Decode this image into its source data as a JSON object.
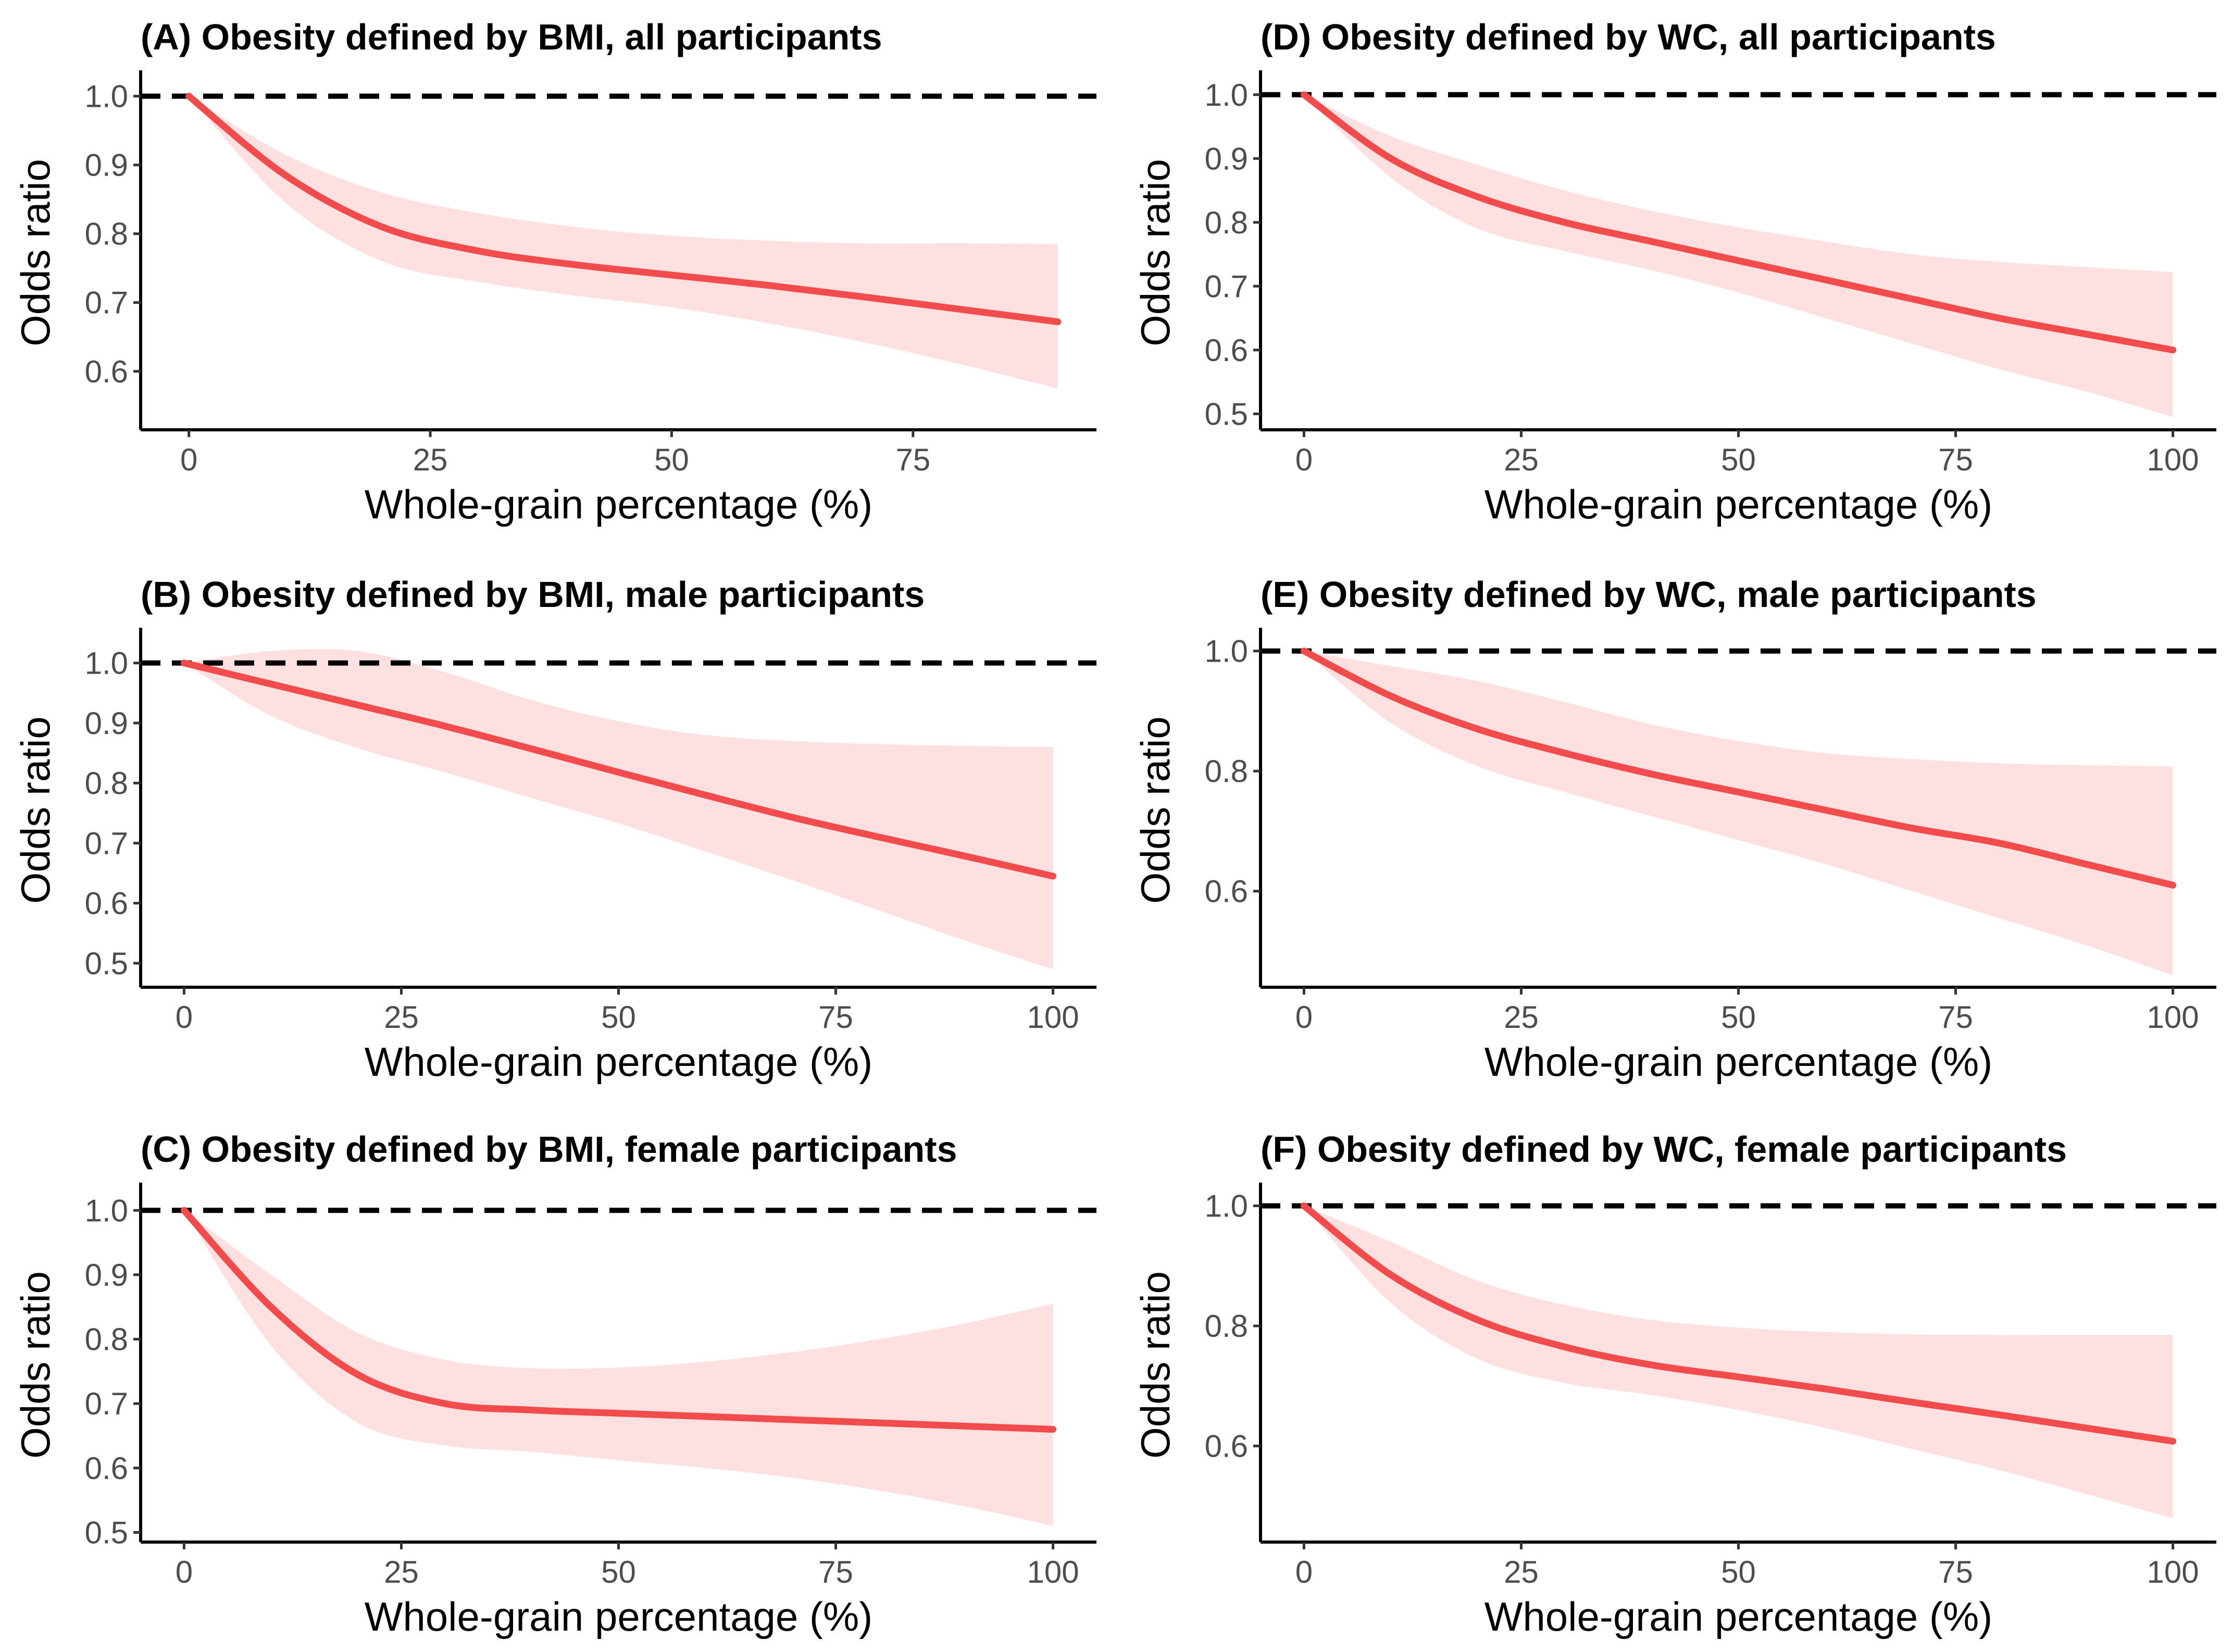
{
  "figure": {
    "line_color": "#f24b4b",
    "band_color": "#ffe0e1",
    "ref_line_color": "#000000"
  },
  "chart_data": [
    {
      "type": "line",
      "id": "A",
      "title": "(A) Obesity defined by BMI, all participants",
      "xlabel": "Whole-grain percentage (%)",
      "ylabel": "Odds ratio",
      "xlim": [
        -5,
        94
      ],
      "ylim": [
        0.515,
        1.03
      ],
      "xticks": [
        0,
        25,
        50,
        75
      ],
      "xtick_labels": [
        "0",
        "25",
        "50",
        "75"
      ],
      "yticks": [
        0.6,
        0.7,
        0.8,
        0.9,
        1.0
      ],
      "ytick_labels": [
        "0.6",
        "0.7",
        "0.8",
        "0.9",
        "1.0"
      ],
      "reference_line": 1.0,
      "series": [
        {
          "name": "Odds ratio",
          "x": [
            0,
            10,
            20,
            30,
            40,
            50,
            60,
            70,
            80,
            90
          ],
          "y": [
            1.0,
            0.885,
            0.81,
            0.775,
            0.755,
            0.74,
            0.725,
            0.708,
            0.69,
            0.672
          ]
        },
        {
          "name": "Lower CI",
          "x": [
            0,
            10,
            20,
            30,
            40,
            50,
            60,
            70,
            80,
            90
          ],
          "y": [
            1.0,
            0.845,
            0.76,
            0.73,
            0.71,
            0.693,
            0.67,
            0.642,
            0.61,
            0.575
          ]
        },
        {
          "name": "Upper CI",
          "x": [
            0,
            10,
            20,
            30,
            40,
            50,
            60,
            70,
            80,
            90
          ],
          "y": [
            1.0,
            0.915,
            0.86,
            0.83,
            0.81,
            0.797,
            0.79,
            0.786,
            0.786,
            0.785
          ]
        }
      ]
    },
    {
      "type": "line",
      "id": "B",
      "title": "(B) Obesity defined by BMI, male participants",
      "xlabel": "Whole-grain percentage (%)",
      "ylabel": "Odds ratio",
      "xlim": [
        -5,
        105
      ],
      "ylim": [
        0.46,
        1.05
      ],
      "xticks": [
        0,
        25,
        50,
        75,
        100
      ],
      "xtick_labels": [
        "0",
        "25",
        "50",
        "75",
        "100"
      ],
      "yticks": [
        0.5,
        0.6,
        0.7,
        0.8,
        0.9,
        1.0
      ],
      "ytick_labels": [
        "0.5",
        "0.6",
        "0.7",
        "0.8",
        "0.9",
        "1.0"
      ],
      "reference_line": 1.0,
      "series": [
        {
          "name": "Odds ratio",
          "x": [
            0,
            10,
            20,
            30,
            40,
            50,
            60,
            70,
            80,
            90,
            100
          ],
          "y": [
            1.0,
            0.965,
            0.93,
            0.895,
            0.857,
            0.818,
            0.78,
            0.743,
            0.71,
            0.678,
            0.645
          ]
        },
        {
          "name": "Lower CI",
          "x": [
            0,
            10,
            20,
            30,
            40,
            50,
            60,
            70,
            80,
            90,
            100
          ],
          "y": [
            1.0,
            0.912,
            0.858,
            0.818,
            0.775,
            0.733,
            0.686,
            0.638,
            0.588,
            0.537,
            0.49
          ]
        },
        {
          "name": "Upper CI",
          "x": [
            0,
            10,
            20,
            30,
            40,
            50,
            60,
            70,
            80,
            90,
            100
          ],
          "y": [
            1.0,
            1.02,
            1.02,
            0.985,
            0.938,
            0.903,
            0.88,
            0.87,
            0.865,
            0.862,
            0.86
          ]
        }
      ]
    },
    {
      "type": "line",
      "id": "C",
      "title": "(C) Obesity defined by BMI, female participants",
      "xlabel": "Whole-grain percentage (%)",
      "ylabel": "Odds ratio",
      "xlim": [
        -5,
        105
      ],
      "ylim": [
        0.485,
        1.035
      ],
      "xticks": [
        0,
        25,
        50,
        75,
        100
      ],
      "xtick_labels": [
        "0",
        "25",
        "50",
        "75",
        "100"
      ],
      "yticks": [
        0.5,
        0.6,
        0.7,
        0.8,
        0.9,
        1.0
      ],
      "ytick_labels": [
        "0.5",
        "0.6",
        "0.7",
        "0.8",
        "0.9",
        "1.0"
      ],
      "reference_line": 1.0,
      "series": [
        {
          "name": "Odds ratio",
          "x": [
            0,
            10,
            20,
            30,
            40,
            50,
            60,
            70,
            80,
            90,
            100
          ],
          "y": [
            1.0,
            0.85,
            0.745,
            0.7,
            0.69,
            0.685,
            0.68,
            0.675,
            0.67,
            0.665,
            0.66
          ]
        },
        {
          "name": "Lower CI",
          "x": [
            0,
            10,
            20,
            30,
            40,
            50,
            60,
            70,
            80,
            90,
            100
          ],
          "y": [
            1.0,
            0.79,
            0.67,
            0.635,
            0.625,
            0.612,
            0.6,
            0.585,
            0.565,
            0.54,
            0.51
          ]
        },
        {
          "name": "Upper CI",
          "x": [
            0,
            10,
            20,
            30,
            40,
            50,
            60,
            70,
            80,
            90,
            100
          ],
          "y": [
            1.0,
            0.9,
            0.81,
            0.768,
            0.755,
            0.756,
            0.765,
            0.78,
            0.8,
            0.825,
            0.855
          ]
        }
      ]
    },
    {
      "type": "line",
      "id": "D",
      "title": "(D) Obesity defined by WC, all participants",
      "xlabel": "Whole-grain percentage (%)",
      "ylabel": "Odds ratio",
      "xlim": [
        -5,
        105
      ],
      "ylim": [
        0.475,
        1.03
      ],
      "xticks": [
        0,
        25,
        50,
        75,
        100
      ],
      "xtick_labels": [
        "0",
        "25",
        "50",
        "75",
        "100"
      ],
      "yticks": [
        0.5,
        0.6,
        0.7,
        0.8,
        0.9,
        1.0
      ],
      "ytick_labels": [
        "0.5",
        "0.6",
        "0.7",
        "0.8",
        "0.9",
        "1.0"
      ],
      "reference_line": 1.0,
      "series": [
        {
          "name": "Odds ratio",
          "x": [
            0,
            10,
            20,
            30,
            40,
            50,
            60,
            70,
            80,
            90,
            100
          ],
          "y": [
            1.0,
            0.9,
            0.84,
            0.8,
            0.77,
            0.74,
            0.71,
            0.68,
            0.65,
            0.625,
            0.6
          ]
        },
        {
          "name": "Lower CI",
          "x": [
            0,
            10,
            20,
            30,
            40,
            50,
            60,
            70,
            80,
            90,
            100
          ],
          "y": [
            1.0,
            0.87,
            0.79,
            0.755,
            0.725,
            0.69,
            0.65,
            0.61,
            0.57,
            0.535,
            0.495
          ]
        },
        {
          "name": "Upper CI",
          "x": [
            0,
            10,
            20,
            30,
            40,
            50,
            60,
            70,
            80,
            90,
            100
          ],
          "y": [
            1.0,
            0.935,
            0.89,
            0.85,
            0.818,
            0.792,
            0.77,
            0.75,
            0.738,
            0.73,
            0.722
          ]
        }
      ]
    },
    {
      "type": "line",
      "id": "E",
      "title": "(E) Obesity defined by WC, male participants",
      "xlabel": "Whole-grain percentage (%)",
      "ylabel": "Odds ratio",
      "xlim": [
        -5,
        105
      ],
      "ylim": [
        0.44,
        1.03
      ],
      "xticks": [
        0,
        25,
        50,
        75,
        100
      ],
      "xtick_labels": [
        "0",
        "25",
        "50",
        "75",
        "100"
      ],
      "yticks": [
        0.6,
        0.8,
        1.0
      ],
      "ytick_labels": [
        "0.6",
        "0.8",
        "1.0"
      ],
      "reference_line": 1.0,
      "series": [
        {
          "name": "Odds ratio",
          "x": [
            0,
            10,
            20,
            30,
            40,
            50,
            60,
            70,
            80,
            90,
            100
          ],
          "y": [
            1.0,
            0.925,
            0.87,
            0.83,
            0.795,
            0.765,
            0.735,
            0.705,
            0.68,
            0.645,
            0.61
          ]
        },
        {
          "name": "Lower CI",
          "x": [
            0,
            10,
            20,
            30,
            40,
            50,
            60,
            70,
            80,
            90,
            100
          ],
          "y": [
            1.0,
            0.88,
            0.808,
            0.765,
            0.725,
            0.685,
            0.645,
            0.6,
            0.555,
            0.51,
            0.46
          ]
        },
        {
          "name": "Upper CI",
          "x": [
            0,
            10,
            20,
            30,
            40,
            50,
            60,
            70,
            80,
            90,
            100
          ],
          "y": [
            1.0,
            0.975,
            0.95,
            0.915,
            0.878,
            0.85,
            0.83,
            0.82,
            0.813,
            0.81,
            0.808
          ]
        }
      ]
    },
    {
      "type": "line",
      "id": "F",
      "title": "(F) Obesity defined by WC, female participants",
      "xlabel": "Whole-grain percentage (%)",
      "ylabel": "Odds ratio",
      "xlim": [
        -5,
        105
      ],
      "ylim": [
        0.44,
        1.03
      ],
      "xticks": [
        0,
        25,
        50,
        75,
        100
      ],
      "xtick_labels": [
        "0",
        "25",
        "50",
        "75",
        "100"
      ],
      "yticks": [
        0.6,
        0.8,
        1.0
      ],
      "ytick_labels": [
        "0.6",
        "0.8",
        "1.0"
      ],
      "reference_line": 1.0,
      "series": [
        {
          "name": "Odds ratio",
          "x": [
            0,
            10,
            20,
            30,
            40,
            50,
            60,
            70,
            80,
            90,
            100
          ],
          "y": [
            1.0,
            0.885,
            0.81,
            0.765,
            0.735,
            0.715,
            0.695,
            0.673,
            0.652,
            0.63,
            0.608
          ]
        },
        {
          "name": "Lower CI",
          "x": [
            0,
            10,
            20,
            30,
            40,
            50,
            60,
            70,
            80,
            90,
            100
          ],
          "y": [
            1.0,
            0.838,
            0.745,
            0.705,
            0.685,
            0.66,
            0.63,
            0.595,
            0.56,
            0.52,
            0.48
          ]
        },
        {
          "name": "Upper CI",
          "x": [
            0,
            10,
            20,
            30,
            40,
            50,
            60,
            70,
            80,
            90,
            100
          ],
          "y": [
            1.0,
            0.94,
            0.875,
            0.835,
            0.81,
            0.797,
            0.79,
            0.786,
            0.785,
            0.785,
            0.785
          ]
        }
      ]
    }
  ]
}
